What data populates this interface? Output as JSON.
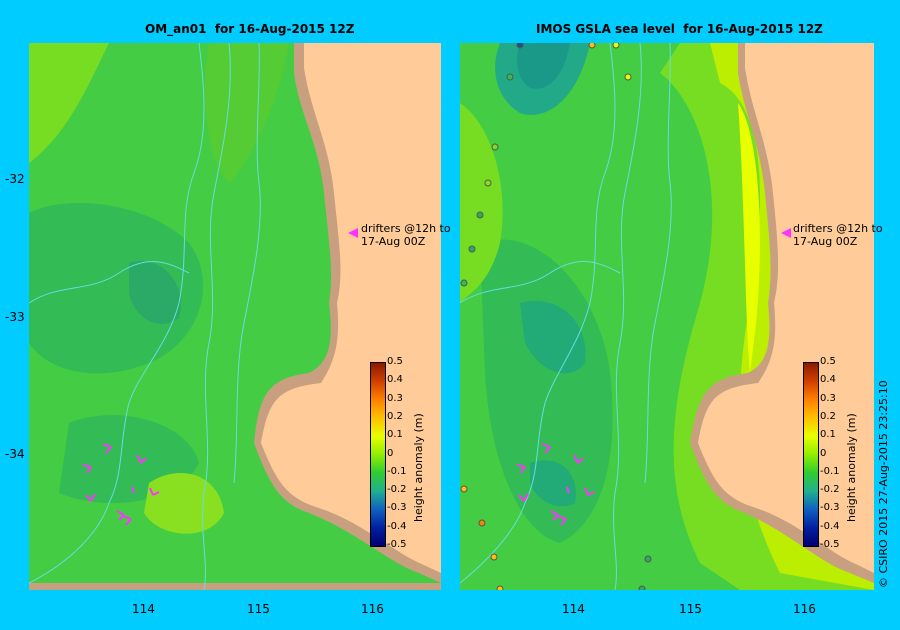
{
  "left_panel": {
    "title": "OM_an01  for 16-Aug-2015 12Z",
    "drifter_note": [
      "drifters @12h to",
      "17-Aug 00Z"
    ]
  },
  "right_panel": {
    "title": "IMOS GSLA sea level  for 16-Aug-2015 12Z",
    "drifter_note": [
      "drifters @12h to",
      "17-Aug 00Z"
    ]
  },
  "colorbar": {
    "title": "height anomaly (m)",
    "ticks": [
      "0.5",
      "0.4",
      "0.3",
      "0.2",
      "0.1",
      "0",
      "-0.1",
      "-0.2",
      "-0.3",
      "-0.4",
      "-0.5"
    ],
    "colors": [
      "#8b1a00",
      "#d04000",
      "#ff8000",
      "#ffc000",
      "#e8ff00",
      "#90ee00",
      "#30cc30",
      "#20b090",
      "#1060c0",
      "#0020a0",
      "#000070"
    ]
  },
  "axes": {
    "x_ticks": [
      "114",
      "115",
      "116"
    ],
    "y_ticks": [
      "-32",
      "-33",
      "-34"
    ]
  },
  "colors": {
    "land": "#ffcc99",
    "coast_shelf": "#c8a080",
    "ocean_base": "#44cc44",
    "frame_bg": "#00ccff",
    "drifter": "#ff33ff",
    "isobath": "#66dddd"
  },
  "copyright": "© CSIRO 2015   27-Aug-2015 23:25:10"
}
